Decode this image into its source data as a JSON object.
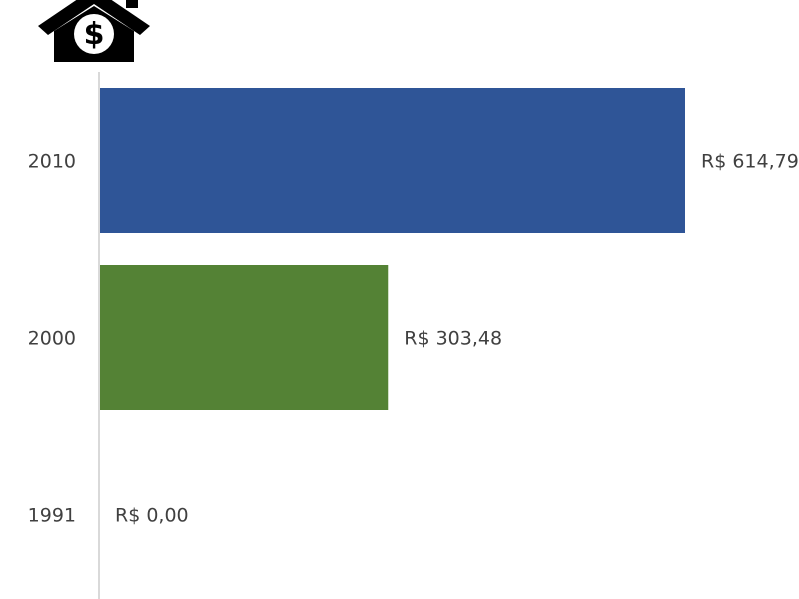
{
  "icon": "house-dollar-icon",
  "colors": {
    "bar_2010": "#2F5597",
    "bar_2000": "#548235",
    "bar_1991": "#A5A5A5",
    "axis": "#D9D9D9",
    "text": "#404040",
    "icon": "#000000"
  },
  "chart_data": {
    "type": "bar",
    "orientation": "horizontal",
    "categories": [
      "2010",
      "2000",
      "1991"
    ],
    "values": [
      614.79,
      303.48,
      0.0
    ],
    "data_labels": [
      "R$ 614,79",
      "R$ 303,48",
      "R$ 0,00"
    ],
    "title": "",
    "xlabel": "",
    "ylabel": "",
    "xlim": [
      0,
      614.79
    ],
    "grid": false,
    "legend": "none"
  }
}
